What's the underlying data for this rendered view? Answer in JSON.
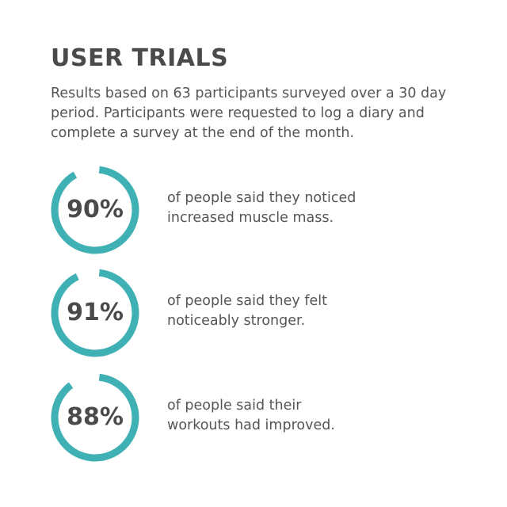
{
  "title": "USER TRIALS",
  "intro": "Results based on 63 participants surveyed over a 30 day period. Participants were requested to log a diary and complete a survey at the end of the month.",
  "accent": "#3fb0b4",
  "stats": [
    {
      "value": 90,
      "label": "90%",
      "line1": "of people said they noticed",
      "line2": "increased muscle mass."
    },
    {
      "value": 91,
      "label": "91%",
      "line1": "of people said they felt",
      "line2": "noticeably stronger."
    },
    {
      "value": 88,
      "label": "88%",
      "line1": "of people said their",
      "line2": "workouts had improved."
    }
  ]
}
